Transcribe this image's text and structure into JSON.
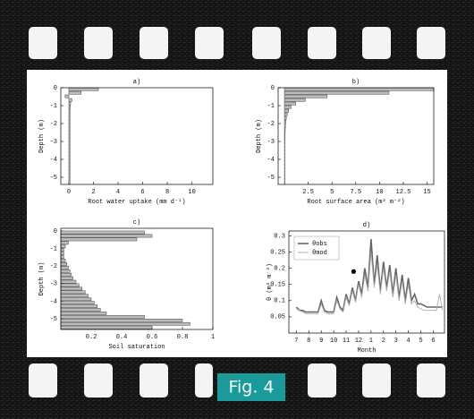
{
  "figure_label": "Fig. 4",
  "chart_data": [
    {
      "type": "barh",
      "title": "a)",
      "xlabel": "Root water uptake (mm d⁻¹)",
      "ylabel": "Depth (m)",
      "depths": [
        0,
        -0.2,
        -0.4,
        -0.6,
        -0.8,
        -1,
        -1.2,
        -1.4,
        -1.6,
        -1.8,
        -2,
        -2.2,
        -2.4,
        -2.6,
        -2.8,
        -3,
        -3.2,
        -3.4,
        -3.6,
        -3.8,
        -4,
        -4.2,
        -4.4,
        -4.6,
        -4.8,
        -5,
        -5.2
      ],
      "values": [
        2.4,
        1.0,
        -0.3,
        0.25,
        0.15,
        0.12,
        0.1,
        0.1,
        0.1,
        0.1,
        0.1,
        0.1,
        0.1,
        0.1,
        0.1,
        0.1,
        0.1,
        0.1,
        0.1,
        0.1,
        0.1,
        0.1,
        0.1,
        0.1,
        0.1,
        0.1,
        0.1
      ],
      "color": "#bbbbbb",
      "xlim": [
        -0.65,
        11.7
      ],
      "xticks": [
        0,
        2,
        4,
        6,
        8,
        10
      ],
      "ylim": [
        -5.4,
        0
      ],
      "yticks": [
        0,
        -1,
        -2,
        -3,
        -4,
        -5
      ]
    },
    {
      "type": "barh",
      "title": "b)",
      "xlabel": "Root surface area (m² m⁻²)",
      "ylabel": "Depth (m)",
      "depths": [
        0,
        -0.2,
        -0.4,
        -0.6,
        -0.8,
        -1,
        -1.2,
        -1.4,
        -1.6,
        -1.8,
        -2,
        -2.2,
        -2.4,
        -2.6,
        -2.8,
        -3,
        -3.2,
        -3.4,
        -3.6,
        -3.8,
        -4,
        -4.2,
        -4.4,
        -4.6,
        -4.8,
        -5,
        -5.2
      ],
      "values": [
        15.7,
        11,
        4.5,
        2.2,
        1.2,
        0.7,
        0.45,
        0.3,
        0.2,
        0.15,
        0.12,
        0.1,
        0.08,
        0.07,
        0.06,
        0.05,
        0.05,
        0.05,
        0.05,
        0.05,
        0.05,
        0.05,
        0.05,
        0.05,
        0.05,
        0.05,
        0.05
      ],
      "color": "#bbbbbb",
      "xlim": [
        -0.66,
        15.7
      ],
      "xticks": [
        2.5,
        5,
        7.5,
        10,
        12.5,
        15
      ],
      "ylim": [
        -5.4,
        0
      ],
      "yticks": [
        0,
        -1,
        -2,
        -3,
        -4,
        -5
      ]
    },
    {
      "type": "barh",
      "title": "c)",
      "xlabel": "Soil saturation",
      "ylabel": "Depth (m)",
      "depths": [
        0,
        -0.2,
        -0.4,
        -0.6,
        -0.8,
        -1,
        -1.2,
        -1.4,
        -1.6,
        -1.8,
        -2,
        -2.2,
        -2.4,
        -2.6,
        -2.8,
        -3,
        -3.2,
        -3.4,
        -3.6,
        -3.8,
        -4,
        -4.2,
        -4.4,
        -4.6,
        -4.8,
        -5,
        -5.2,
        -5.4
      ],
      "values": [
        0.55,
        0.6,
        0.5,
        0.05,
        0.03,
        0.02,
        0.02,
        0.02,
        0.03,
        0.04,
        0.05,
        0.06,
        0.07,
        0.08,
        0.1,
        0.12,
        0.14,
        0.16,
        0.18,
        0.2,
        0.22,
        0.24,
        0.26,
        0.3,
        0.55,
        0.8,
        0.85,
        0.6
      ],
      "color": "#bbbbbb",
      "xlim": [
        0,
        1
      ],
      "xticks": [
        0.2,
        0.4,
        0.6,
        0.8,
        1
      ],
      "ylim": [
        -5.6,
        0.15
      ],
      "yticks": [
        0,
        -1,
        -2,
        -3,
        -4,
        -5
      ]
    },
    {
      "type": "line",
      "title": "d)",
      "xlabel": "Month",
      "ylabel": "θ (m³ m⁻³)",
      "x": [
        0,
        0.25,
        0.5,
        0.75,
        1,
        1.25,
        1.5,
        1.75,
        2,
        2.25,
        2.5,
        2.75,
        3,
        3.25,
        3.5,
        3.75,
        4,
        4.25,
        4.5,
        4.75,
        5,
        5.25,
        5.5,
        5.75,
        6,
        6.25,
        6.5,
        6.75,
        7,
        7.25,
        7.5,
        7.75,
        8,
        8.25,
        8.5,
        8.75,
        9,
        9.25,
        9.5,
        9.75,
        10,
        10.25,
        10.5,
        10.75,
        11,
        11.25,
        11.5,
        11.75
      ],
      "series": [
        {
          "name": "θobs",
          "color": "#666666",
          "values": [
            0.08,
            0.07,
            0.07,
            0.065,
            0.065,
            0.065,
            0.065,
            0.065,
            0.1,
            0.07,
            0.065,
            0.065,
            0.065,
            0.11,
            0.08,
            0.07,
            0.12,
            0.09,
            0.14,
            0.1,
            0.16,
            0.12,
            0.2,
            0.14,
            0.29,
            0.15,
            0.24,
            0.13,
            0.22,
            0.14,
            0.21,
            0.12,
            0.2,
            0.11,
            0.18,
            0.1,
            0.17,
            0.1,
            0.12,
            0.09,
            0.09,
            0.085,
            0.08,
            0.08,
            0.08,
            0.08,
            0.08,
            0.08
          ]
        },
        {
          "name": "θmod",
          "color": "#aaaaaa",
          "values": [
            0.075,
            0.07,
            0.065,
            0.06,
            0.06,
            0.06,
            0.06,
            0.06,
            0.09,
            0.065,
            0.06,
            0.06,
            0.06,
            0.1,
            0.075,
            0.065,
            0.11,
            0.085,
            0.13,
            0.095,
            0.15,
            0.11,
            0.18,
            0.13,
            0.25,
            0.14,
            0.21,
            0.12,
            0.2,
            0.13,
            0.19,
            0.11,
            0.18,
            0.1,
            0.16,
            0.09,
            0.15,
            0.09,
            0.1,
            0.08,
            0.075,
            0.07,
            0.07,
            0.07,
            0.07,
            0.07,
            0.12,
            0.07
          ]
        }
      ],
      "marker": {
        "x": 4.6,
        "y": 0.19
      },
      "xlim": [
        -0.6,
        11.9
      ],
      "xticks": [
        {
          "value": 0,
          "label": "7"
        },
        {
          "value": 1,
          "label": "8"
        },
        {
          "value": 2,
          "label": "9"
        },
        {
          "value": 3,
          "label": "10"
        },
        {
          "value": 4,
          "label": "11"
        },
        {
          "value": 5,
          "label": "12"
        },
        {
          "value": 6,
          "label": "1"
        },
        {
          "value": 7,
          "label": "2"
        },
        {
          "value": 8,
          "label": "3"
        },
        {
          "value": 9,
          "label": "4"
        },
        {
          "value": 10,
          "label": "5"
        },
        {
          "value": 11,
          "label": "6"
        }
      ],
      "ylim": [
        0,
        0.315
      ],
      "yticks": [
        0.05,
        0.1,
        0.15,
        0.2,
        0.25,
        0.3
      ],
      "legend": "upper left"
    }
  ]
}
